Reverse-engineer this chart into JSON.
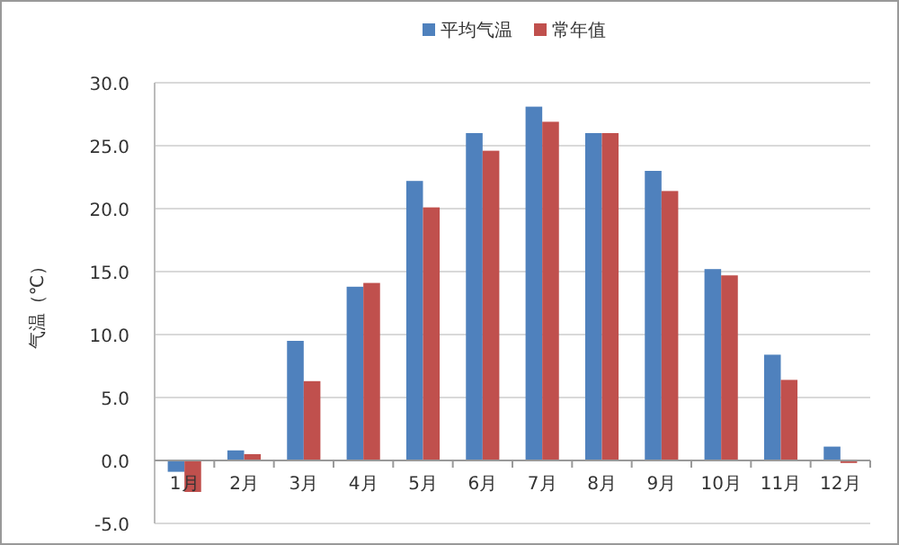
{
  "chart_data": {
    "type": "bar",
    "ylabel": "气温（℃）",
    "categories": [
      "1月",
      "2月",
      "3月",
      "4月",
      "5月",
      "6月",
      "7月",
      "8月",
      "9月",
      "10月",
      "11月",
      "12月"
    ],
    "series": [
      {
        "name": "平均气温",
        "color": "#4f81bd",
        "values": [
          -0.9,
          0.8,
          9.5,
          13.8,
          22.2,
          26.0,
          28.1,
          26.0,
          23.0,
          15.2,
          8.4,
          1.1
        ]
      },
      {
        "name": "常年值",
        "color": "#c0504d",
        "values": [
          -2.5,
          0.5,
          6.3,
          14.1,
          20.1,
          24.6,
          26.9,
          26.0,
          21.4,
          14.7,
          6.4,
          -0.2
        ]
      }
    ],
    "ylim": [
      -5,
      30
    ],
    "yticks": [
      {
        "value": -5,
        "label": "-5.0"
      },
      {
        "value": 0,
        "label": "0.0"
      },
      {
        "value": 5,
        "label": "5.0"
      },
      {
        "value": 10,
        "label": "10.0"
      },
      {
        "value": 15,
        "label": "15.0"
      },
      {
        "value": 20,
        "label": "20.0"
      },
      {
        "value": 25,
        "label": "25.0"
      },
      {
        "value": 30,
        "label": "30.0"
      }
    ],
    "grid": "y",
    "legend": "top"
  }
}
